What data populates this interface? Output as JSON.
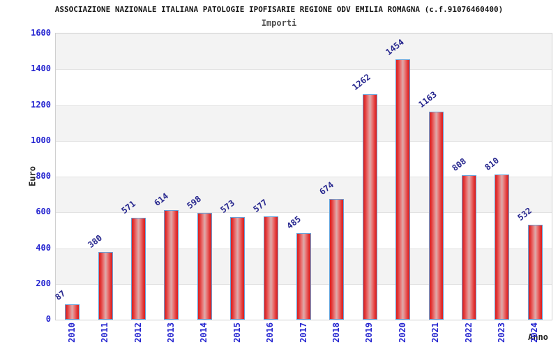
{
  "title": "ASSOCIAZIONE NAZIONALE ITALIANA PATOLOGIE IPOFISARIE REGIONE ODV EMILIA ROMAGNA (c.f.91076460400)",
  "subtitle": "Importi",
  "chart_data": {
    "type": "bar",
    "title": "Importi",
    "categories": [
      "2010",
      "2011",
      "2012",
      "2013",
      "2014",
      "2015",
      "2016",
      "2017",
      "2018",
      "2019",
      "2020",
      "2021",
      "2022",
      "2023",
      "2024"
    ],
    "values": [
      87,
      380,
      571,
      614,
      598,
      573,
      577,
      485,
      674,
      1262,
      1454,
      1163,
      808,
      810,
      532
    ],
    "xlabel": "Anno",
    "ylabel": "Euro",
    "ylim": [
      0,
      1600
    ],
    "y_ticks": [
      0,
      200,
      400,
      600,
      800,
      1000,
      1200,
      1400,
      1600
    ],
    "legend": "none",
    "grid": "alternating horizontal bands with light gridlines every 200",
    "value_labels": "above each bar, rotated",
    "colors": {
      "bar_edge": "#da1f1f",
      "bar_center": "#dcabab",
      "bar_border": "#67a1d8",
      "tick_label_blue": "#2424d0",
      "value_label_navy": "#28288f",
      "band_gray": "#f3f3f3",
      "band_white": "#ffffff",
      "title_color": "#151515",
      "subtitle_color": "#4d4d4d"
    }
  }
}
